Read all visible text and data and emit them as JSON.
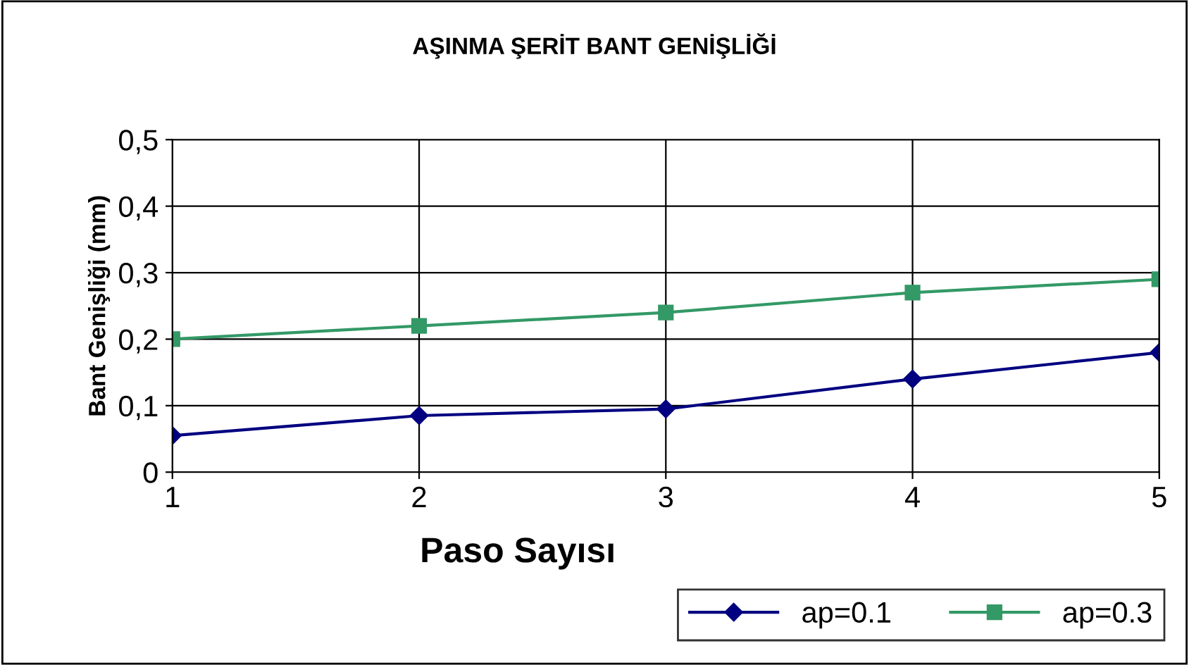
{
  "chart_data": {
    "type": "line",
    "title": "AŞINMA ŞERİT BANT GENİŞLİĞİ",
    "xlabel": "Paso Sayısı",
    "ylabel": "Bant Genişliği (mm)",
    "x": [
      1,
      2,
      3,
      4,
      5
    ],
    "series": [
      {
        "name": "ap=0.1",
        "color": "#000080",
        "values": [
          0.055,
          0.085,
          0.095,
          0.14,
          0.18
        ],
        "marker": "diamond"
      },
      {
        "name": "ap=0.3",
        "color": "#339966",
        "values": [
          0.2,
          0.22,
          0.24,
          0.27,
          0.29
        ],
        "marker": "square"
      }
    ],
    "xlim": [
      1,
      5
    ],
    "xticks": [
      1,
      2,
      3,
      4,
      5
    ],
    "ylim": [
      0,
      0.5
    ],
    "yticks": [
      {
        "value": 0,
        "label": "0"
      },
      {
        "value": 0.1,
        "label": "0,1"
      },
      {
        "value": 0.2,
        "label": "0,2"
      },
      {
        "value": 0.3,
        "label": "0,3"
      },
      {
        "value": 0.4,
        "label": "0,4"
      },
      {
        "value": 0.5,
        "label": "0,5"
      }
    ],
    "grid": true,
    "legend": "bottom right",
    "line_style": "solid"
  }
}
